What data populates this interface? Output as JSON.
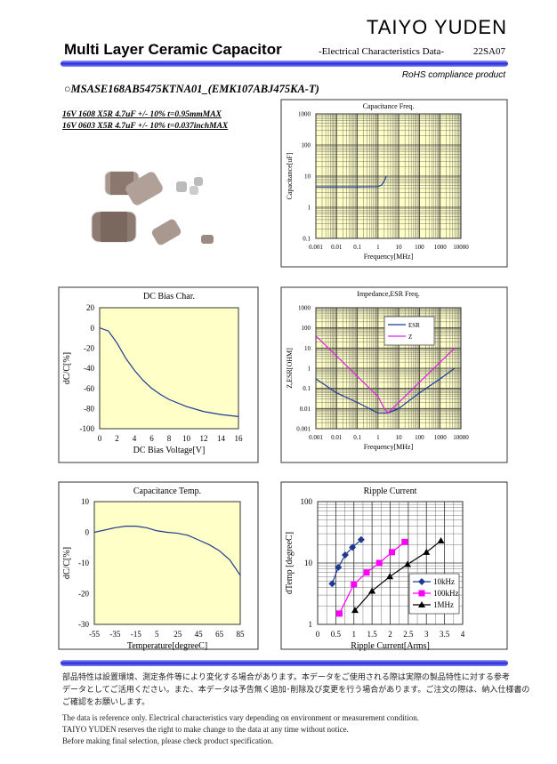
{
  "header": {
    "brand": "TAIYO YUDEN",
    "title": "Multi Layer Ceramic Capacitor",
    "subtitle": "-Electrical Characteristics Data-",
    "code": "22SA07",
    "rohs": "RoHS compliance product"
  },
  "part": {
    "number": "○MSASE168AB5475KTNA01_(EMK107ABJ475KA-T)",
    "spec_lines": [
      "16V 1608 X5R 4.7uF +/- 10% t=0.95mmMAX",
      "16V 0603 X5R 4.7uF +/- 10% t=0.037inchMAX"
    ]
  },
  "chart_data": [
    {
      "type": "line",
      "title": "Capacitance Freq.",
      "xlabel": "Frequency[MHz]",
      "ylabel": "Capacitance[uF]",
      "xlog": true,
      "ylog": true,
      "grid": true,
      "plot_color": "#ffffc8",
      "xlim": [
        0.001,
        10000
      ],
      "ylim": [
        0.1,
        1000
      ],
      "xticks": [
        0.001,
        0.01,
        0.1,
        1,
        10,
        100,
        1000,
        10000
      ],
      "yticks": [
        0.1,
        1,
        10,
        100,
        1000
      ],
      "series": [
        {
          "color": "#1f3a93",
          "x": [
            0.001,
            0.01,
            0.1,
            1,
            1.5,
            2,
            2.5
          ],
          "values": [
            4.5,
            4.5,
            4.5,
            4.6,
            5.2,
            7,
            10
          ]
        }
      ]
    },
    {
      "type": "line",
      "title": "DC Bias Char.",
      "xlabel": "DC Bias Voltage[V]",
      "ylabel": "dC/C[%]",
      "xlog": false,
      "ylog": false,
      "grid": false,
      "plot_color": "#ffffc8",
      "xlim": [
        0,
        16
      ],
      "ylim": [
        -100,
        20
      ],
      "xticks": [
        0,
        2,
        4,
        6,
        8,
        10,
        12,
        14,
        16
      ],
      "yticks": [
        20,
        0,
        -20,
        -40,
        -60,
        -80,
        -100
      ],
      "series": [
        {
          "color": "#1f3a93",
          "x": [
            0,
            1,
            2,
            3,
            4,
            5,
            6,
            7,
            8,
            10,
            12,
            14,
            16
          ],
          "values": [
            0,
            -3,
            -15,
            -30,
            -42,
            -52,
            -60,
            -66,
            -71,
            -78,
            -83,
            -86,
            -88
          ]
        }
      ]
    },
    {
      "type": "line",
      "title": "Impedance,ESR Freq.",
      "xlabel": "Frequency[MHz]",
      "ylabel": "Z,ESR[OHM]",
      "xlog": true,
      "ylog": true,
      "grid": true,
      "plot_color": "#ffffc8",
      "legend": "upper-right",
      "xlim": [
        0.001,
        10000
      ],
      "ylim": [
        0.001,
        1000
      ],
      "xticks": [
        0.001,
        0.01,
        0.1,
        1,
        10,
        100,
        1000,
        10000
      ],
      "yticks": [
        0.001,
        0.01,
        0.1,
        1,
        10,
        100,
        1000
      ],
      "series": [
        {
          "name": "ESR",
          "color": "#1f3a93",
          "x": [
            0.001,
            0.01,
            0.1,
            1,
            3,
            10,
            100,
            1000,
            5000
          ],
          "values": [
            0.3,
            0.06,
            0.02,
            0.006,
            0.006,
            0.01,
            0.06,
            0.3,
            1
          ]
        },
        {
          "name": "Z",
          "color": "#e020e0",
          "x": [
            0.001,
            0.01,
            0.1,
            1,
            2,
            3,
            10,
            100,
            1000,
            5000
          ],
          "values": [
            40,
            4,
            0.4,
            0.04,
            0.01,
            0.006,
            0.02,
            0.2,
            2,
            10
          ]
        }
      ]
    },
    {
      "type": "line",
      "title": "Capacitance Temp.",
      "xlabel": "Temperature[degreeC]",
      "ylabel": "dC/C[%]",
      "xlog": false,
      "ylog": false,
      "grid": false,
      "plot_color": "#ffffc8",
      "xlim": [
        -55,
        85
      ],
      "ylim": [
        -30,
        10
      ],
      "xticks": [
        -55,
        -35,
        -15,
        5,
        25,
        45,
        65,
        85
      ],
      "yticks": [
        10,
        0,
        -10,
        -20,
        -30
      ],
      "series": [
        {
          "color": "#1f3a93",
          "x": [
            -55,
            -35,
            -25,
            -15,
            -5,
            5,
            15,
            25,
            35,
            45,
            55,
            65,
            75,
            85
          ],
          "values": [
            0,
            1.5,
            2,
            2,
            1.5,
            0.5,
            0,
            -0.3,
            -1,
            -2.5,
            -4,
            -6,
            -9,
            -14
          ]
        }
      ]
    },
    {
      "type": "line",
      "title": "Ripple Current",
      "xlabel": "Ripple Current[Arms]",
      "ylabel": "dTemp [degreeC]",
      "xlog": false,
      "ylog": true,
      "grid": true,
      "plot_color": "#ffffff",
      "legend": "lower-right",
      "xlim": [
        0,
        4
      ],
      "ylim": [
        1,
        100
      ],
      "xticks": [
        0,
        0.5,
        1,
        1.5,
        2,
        2.5,
        3,
        3.5,
        4
      ],
      "yticks": [
        1,
        10,
        100
      ],
      "series": [
        {
          "name": "10kHz",
          "color": "#1f3a93",
          "marker": "diamond",
          "x": [
            0.4,
            0.57,
            0.76,
            0.96,
            1.2
          ],
          "values": [
            4.6,
            8.5,
            13.5,
            18,
            24
          ]
        },
        {
          "name": "100kHz",
          "color": "#ff00ff",
          "marker": "square",
          "x": [
            0.6,
            1.0,
            1.35,
            1.7,
            2.05,
            2.4
          ],
          "values": [
            1.5,
            4.5,
            7,
            10,
            15,
            22
          ]
        },
        {
          "name": "1MHz",
          "color": "#000000",
          "marker": "triangle",
          "x": [
            1.03,
            1.5,
            1.99,
            2.48,
            3.0,
            3.4
          ],
          "values": [
            1.7,
            3.5,
            6,
            9.5,
            15,
            23
          ]
        }
      ]
    }
  ],
  "notes": {
    "ja": [
      "部品特性は設置環境、測定条件等により変化する場合があります。本データをご使用される際は実際の製品特性に対する参考",
      "データとしてご活用ください。また、本データは予告無く追加･削除及び変更を行う場合があります。ご注文の際は、納入仕様書の",
      "ご確認をお願いします。"
    ],
    "en": [
      "The data is reference only. Electrical characteristics vary depending on environment or measurement condition.",
      "TAIYO YUDEN reserves the right to make change to the data at any time without notice.",
      "Before making final selection, please check product specification."
    ]
  }
}
